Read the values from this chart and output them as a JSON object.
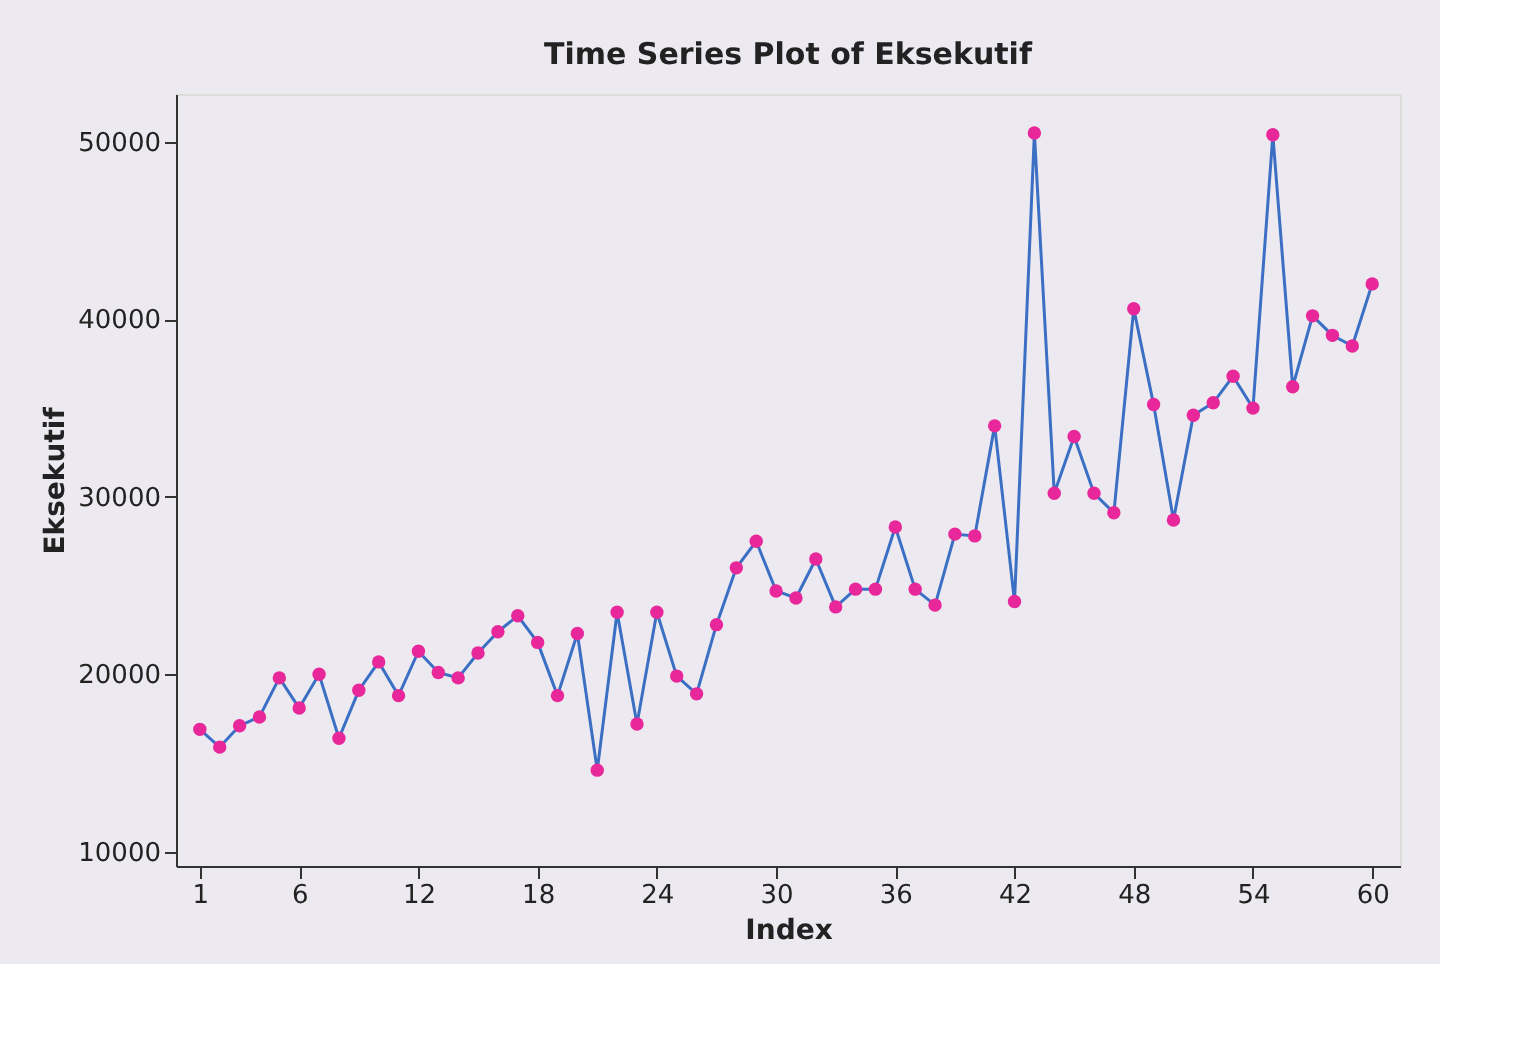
{
  "chart_data": {
    "type": "line",
    "title": "Time Series Plot of Eksekutif",
    "xlabel": "Index",
    "ylabel": "Eksekutif",
    "x": [
      1,
      2,
      3,
      4,
      5,
      6,
      7,
      8,
      9,
      10,
      11,
      12,
      13,
      14,
      15,
      16,
      17,
      18,
      19,
      20,
      21,
      22,
      23,
      24,
      25,
      26,
      27,
      28,
      29,
      30,
      31,
      32,
      33,
      34,
      35,
      36,
      37,
      38,
      39,
      40,
      41,
      42,
      43,
      44,
      45,
      46,
      47,
      48,
      49,
      50,
      51,
      52,
      53,
      54,
      55,
      56,
      57,
      58,
      59,
      60
    ],
    "series": [
      {
        "color": "#3b6fc4",
        "values": [
          16900,
          15900,
          17100,
          17600,
          19800,
          18100,
          20000,
          16400,
          19100,
          20700,
          18800,
          21300,
          20100,
          19800,
          21200,
          22400,
          23300,
          21800,
          18800,
          22300,
          14600,
          23500,
          17200,
          23500,
          19900,
          18900,
          22800,
          26000,
          27500,
          24700,
          24300,
          26500,
          23800,
          24800,
          24800,
          28300,
          24800,
          23900,
          27900,
          27800,
          34000,
          24100,
          50500,
          30200,
          33400,
          30200,
          29100,
          40600,
          35200,
          28700,
          34600,
          35300,
          36800,
          35000,
          50400,
          36200,
          40200,
          39100,
          38500,
          42000
        ]
      },
      {
        "type": "scatter",
        "color": "#e8289a",
        "values": [
          16900,
          15900,
          17100,
          17600,
          19800,
          18100,
          20000,
          16400,
          19100,
          20700,
          18800,
          21300,
          20100,
          19800,
          21200,
          22400,
          23300,
          21800,
          18800,
          22300,
          14600,
          23500,
          17200,
          23500,
          19900,
          18900,
          22800,
          26000,
          27500,
          24700,
          24300,
          26500,
          23800,
          24800,
          24800,
          28300,
          24800,
          23900,
          27900,
          27800,
          34000,
          24100,
          50500,
          30200,
          33400,
          30200,
          29100,
          40600,
          35200,
          28700,
          34600,
          35300,
          36800,
          35000,
          50400,
          36200,
          40200,
          39100,
          38500,
          42000
        ]
      }
    ],
    "line_style": "solid",
    "xlim": [
      -0.2,
      61.4
    ],
    "xticks": [
      1,
      6,
      12,
      18,
      24,
      30,
      36,
      42,
      48,
      54,
      60
    ],
    "ylim": [
      9200,
      52700
    ],
    "yticks": [
      10000,
      20000,
      30000,
      40000,
      50000
    ],
    "grid": false
  }
}
